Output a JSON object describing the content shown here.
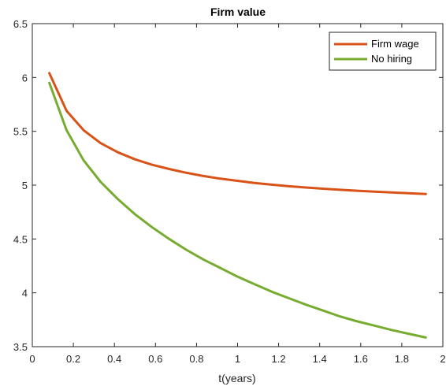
{
  "chart_data": {
    "type": "line",
    "title": "Firm value",
    "xlabel": "t(years)",
    "ylabel": "",
    "xlim": [
      0,
      2
    ],
    "ylim": [
      3.5,
      6.5
    ],
    "xticks": [
      0,
      0.2,
      0.4,
      0.6,
      0.8,
      1,
      1.2,
      1.4,
      1.6,
      1.8,
      2
    ],
    "xtick_labels": [
      "0",
      "0.2",
      "0.4",
      "0.6",
      "0.8",
      "1",
      "1.2",
      "1.4",
      "1.6",
      "1.8",
      "2"
    ],
    "yticks": [
      3.5,
      4,
      4.5,
      5,
      5.5,
      6,
      6.5
    ],
    "ytick_labels": [
      "3.5",
      "4",
      "4.5",
      "5",
      "5.5",
      "6",
      "6.5"
    ],
    "grid": false,
    "legend_position": "top-right",
    "x": [
      0.083,
      0.167,
      0.25,
      0.333,
      0.417,
      0.5,
      0.583,
      0.667,
      0.75,
      0.833,
      0.917,
      1.0,
      1.083,
      1.167,
      1.25,
      1.333,
      1.417,
      1.5,
      1.583,
      1.667,
      1.75,
      1.833,
      1.917
    ],
    "series": [
      {
        "name": "Firm wage",
        "color": "#D95319",
        "values": [
          6.04,
          5.69,
          5.51,
          5.39,
          5.305,
          5.24,
          5.19,
          5.15,
          5.115,
          5.085,
          5.06,
          5.04,
          5.02,
          5.005,
          4.99,
          4.978,
          4.967,
          4.957,
          4.948,
          4.94,
          4.932,
          4.925,
          4.918
        ]
      },
      {
        "name": "No hiring",
        "color": "#77AC30",
        "values": [
          5.95,
          5.51,
          5.23,
          5.03,
          4.87,
          4.73,
          4.61,
          4.5,
          4.4,
          4.31,
          4.23,
          4.15,
          4.08,
          4.01,
          3.95,
          3.89,
          3.835,
          3.78,
          3.735,
          3.695,
          3.655,
          3.62,
          3.585
        ]
      }
    ]
  }
}
